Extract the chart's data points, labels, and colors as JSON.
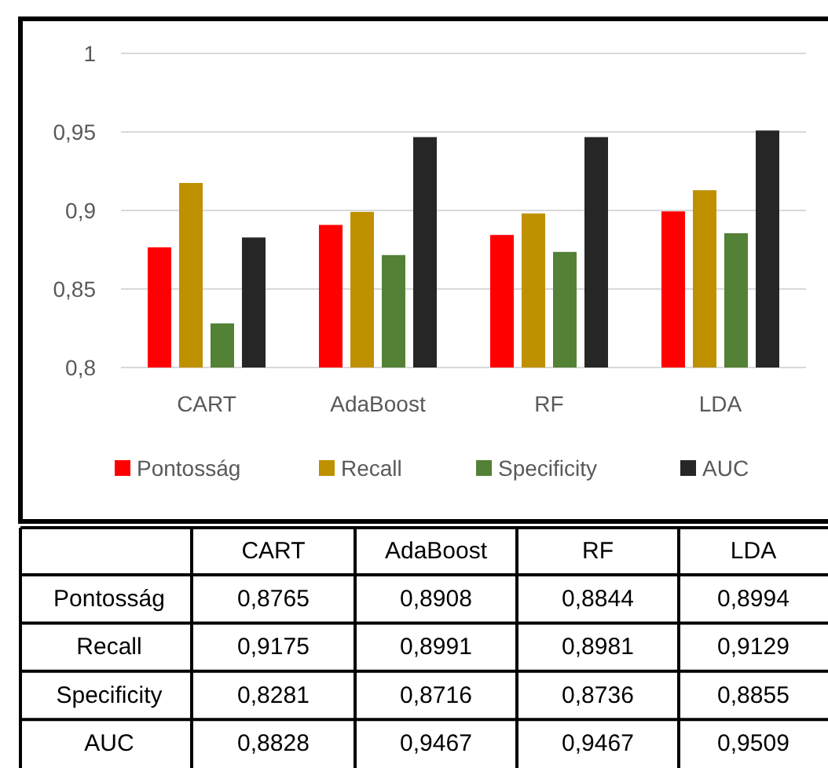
{
  "chart_data": {
    "type": "bar",
    "categories": [
      "CART",
      "AdaBoost",
      "RF",
      "LDA"
    ],
    "series": [
      {
        "name": "Pontosság",
        "color": "#ff0000",
        "values": [
          0.8765,
          0.8908,
          0.8844,
          0.8994
        ],
        "value_labels": [
          "0,8765",
          "0,8908",
          "0,8844",
          "0,8994"
        ]
      },
      {
        "name": "Recall",
        "color": "#bf9000",
        "values": [
          0.9175,
          0.8991,
          0.8981,
          0.9129
        ],
        "value_labels": [
          "0,9175",
          "0,8991",
          "0,8981",
          "0,9129"
        ]
      },
      {
        "name": "Specificity",
        "color": "#538135",
        "values": [
          0.8281,
          0.8716,
          0.8736,
          0.8855
        ],
        "value_labels": [
          "0,8281",
          "0,8716",
          "0,8736",
          "0,8855"
        ]
      },
      {
        "name": "AUC",
        "color": "#262626",
        "values": [
          0.8828,
          0.9467,
          0.9467,
          0.9509
        ],
        "value_labels": [
          "0,8828",
          "0,9467",
          "0,9467",
          "0,9509"
        ]
      }
    ],
    "ylim": [
      0.8,
      1
    ],
    "yticks": [
      {
        "value": 0.8,
        "label": "0,8"
      },
      {
        "value": 0.85,
        "label": "0,85"
      },
      {
        "value": 0.9,
        "label": "0,9"
      },
      {
        "value": 0.95,
        "label": "0,95"
      },
      {
        "value": 1,
        "label": "1"
      }
    ],
    "grid": "y",
    "legend": "bottom"
  }
}
